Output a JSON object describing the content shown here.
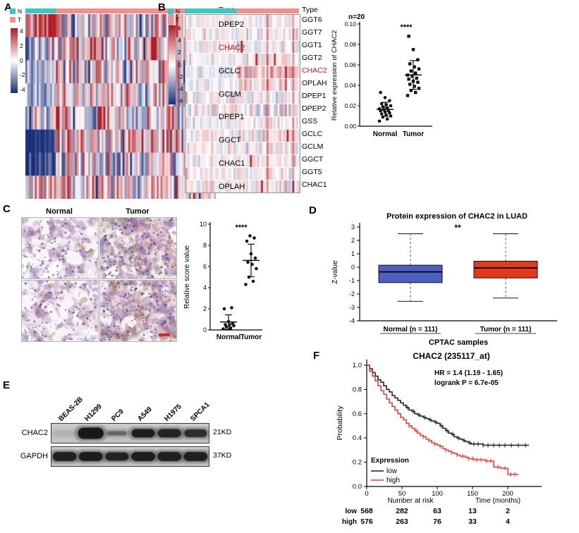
{
  "colors": {
    "type_normal": "#3ec6c3",
    "type_tumor": "#f2908f",
    "heat_pos": "#b01b25",
    "heat_neg": "#1a2f78",
    "highlight_gene": "#c0181c",
    "km_low": "#1a1a1a",
    "km_high": "#e8362e",
    "box_normal": "#4d5fc0",
    "box_tumor": "#e2391b",
    "scalebar": "#d92c1f"
  },
  "panels": {
    "a": {
      "label": "A"
    },
    "b": {
      "label": "B"
    },
    "c": {
      "label": "C"
    },
    "d": {
      "label": "D"
    },
    "e": {
      "label": "E"
    },
    "f": {
      "label": "F"
    }
  },
  "ihc": {
    "col_headers": [
      "Normal",
      "Tumor"
    ],
    "images": [
      {
        "group": "normal",
        "seed": 21
      },
      {
        "group": "tumor",
        "seed": 57
      },
      {
        "group": "normal",
        "seed": 93
      },
      {
        "group": "tumor",
        "seed": 129
      }
    ]
  },
  "blot": {
    "lanes": [
      "BEAS-2B",
      "H1299",
      "PC9",
      "A549",
      "H1975",
      "SPCA1"
    ],
    "rows": [
      {
        "protein": "CHAC2",
        "size": "21KD",
        "heights": [
          7,
          16,
          6,
          12,
          12,
          11
        ],
        "intensities": [
          0.05,
          1.0,
          0.45,
          0.95,
          0.9,
          0.82
        ]
      },
      {
        "protein": "GAPDH",
        "size": "37KD",
        "heights": [
          13,
          13,
          12,
          13,
          13,
          13
        ],
        "intensities": [
          0.92,
          0.96,
          0.9,
          0.95,
          0.93,
          0.93
        ]
      }
    ]
  },
  "chart_data": [
    {
      "id": "heatmap-a",
      "type": "heatmap",
      "type_label": "Type",
      "legend": [
        {
          "key": "N"
        },
        {
          "key": "T"
        }
      ],
      "colorbar_ticks": [
        "4",
        "2",
        "0",
        "-2",
        "-4"
      ],
      "scale_max": 4,
      "columns": 100,
      "normal_fraction": 0.16,
      "seed": 11,
      "column_effect": 0.9,
      "outlier_prob": 0,
      "hot_columns": [],
      "rows": [
        {
          "gene": "DPEP2",
          "highlight": false,
          "n_mean": 3.3,
          "n_sd": 0.7,
          "t_mean": -0.3,
          "t_sd": 1.6
        },
        {
          "gene": "CHAC2",
          "highlight": true,
          "n_mean": -1.0,
          "n_sd": 1.0,
          "t_mean": 0.6,
          "t_sd": 1.7
        },
        {
          "gene": "GCLC",
          "highlight": false,
          "n_mean": -0.6,
          "n_sd": 1.0,
          "t_mean": 0.2,
          "t_sd": 1.7
        },
        {
          "gene": "GCLM",
          "highlight": false,
          "n_mean": -1.0,
          "n_sd": 1.0,
          "t_mean": 0.1,
          "t_sd": 1.6
        },
        {
          "gene": "DPEP1",
          "highlight": false,
          "n_mean": -0.4,
          "n_sd": 1.4,
          "t_mean": 0.0,
          "t_sd": 1.8
        },
        {
          "gene": "GGCT",
          "highlight": false,
          "n_mean": -3.8,
          "n_sd": 0.5,
          "t_mean": 0.6,
          "t_sd": 1.5
        },
        {
          "gene": "CHAC1",
          "highlight": false,
          "n_mean": -3.4,
          "n_sd": 0.8,
          "t_mean": 0.1,
          "t_sd": 1.6
        },
        {
          "gene": "OPLAH",
          "highlight": false,
          "n_mean": 0.9,
          "n_sd": 1.1,
          "t_mean": 0.8,
          "t_sd": 1.4
        }
      ]
    },
    {
      "id": "heatmap-b",
      "type": "heatmap",
      "type_label": "Type",
      "legend": [
        {
          "key": "N"
        },
        {
          "key": "T"
        }
      ],
      "colorbar_ticks": [
        "6",
        "4",
        "2",
        "0",
        "-2",
        "-4",
        "-6"
      ],
      "scale_max": 6,
      "columns": 62,
      "normal_fraction": 0.45,
      "seed": 7,
      "column_effect": 0.3,
      "outlier_prob": 0.015,
      "hot_columns": [
        {
          "index": 44,
          "boost": 3.4
        },
        {
          "index": 58,
          "boost": 2.8
        }
      ],
      "rows": [
        {
          "gene": "GGT6",
          "highlight": false,
          "n_mean": 0.15,
          "n_sd": 0.45,
          "t_mean": -0.1,
          "t_sd": 0.5
        },
        {
          "gene": "GGT7",
          "highlight": false,
          "n_mean": 0.1,
          "n_sd": 0.5,
          "t_mean": 0.0,
          "t_sd": 0.55
        },
        {
          "gene": "GGT1",
          "highlight": false,
          "n_mean": 0.25,
          "n_sd": 0.6,
          "t_mean": -0.15,
          "t_sd": 0.6
        },
        {
          "gene": "GGT2",
          "highlight": false,
          "n_mean": -0.05,
          "n_sd": 0.5,
          "t_mean": 0.1,
          "t_sd": 0.65
        },
        {
          "gene": "CHAC2",
          "highlight": true,
          "n_mean": -0.35,
          "n_sd": 0.4,
          "t_mean": 1.3,
          "t_sd": 1.1
        },
        {
          "gene": "OPLAH",
          "highlight": false,
          "n_mean": -0.05,
          "n_sd": 0.5,
          "t_mean": 0.35,
          "t_sd": 0.8
        },
        {
          "gene": "DPEP1",
          "highlight": false,
          "n_mean": 0.25,
          "n_sd": 0.7,
          "t_mean": -0.3,
          "t_sd": 0.75
        },
        {
          "gene": "DPEP2",
          "highlight": false,
          "n_mean": 0.35,
          "n_sd": 0.8,
          "t_mean": -0.5,
          "t_sd": 0.8
        },
        {
          "gene": "GSS",
          "highlight": false,
          "n_mean": -0.2,
          "n_sd": 0.5,
          "t_mean": 0.2,
          "t_sd": 0.6
        },
        {
          "gene": "GCLC",
          "highlight": false,
          "n_mean": 0.0,
          "n_sd": 0.55,
          "t_mean": 0.15,
          "t_sd": 0.65
        },
        {
          "gene": "GCLM",
          "highlight": false,
          "n_mean": 0.1,
          "n_sd": 0.5,
          "t_mean": 0.0,
          "t_sd": 0.55
        },
        {
          "gene": "GGCT",
          "highlight": false,
          "n_mean": -0.1,
          "n_sd": 0.5,
          "t_mean": 0.15,
          "t_sd": 0.6
        },
        {
          "gene": "GGT5",
          "highlight": false,
          "n_mean": 0.1,
          "n_sd": 0.5,
          "t_mean": -0.1,
          "t_sd": 0.55
        },
        {
          "gene": "CHAC1",
          "highlight": false,
          "n_mean": 0.0,
          "n_sd": 0.5,
          "t_mean": 0.05,
          "t_sd": 0.6
        }
      ]
    },
    {
      "id": "chac2-expression-scatter",
      "type": "scatter",
      "n_label": "n=20",
      "significance": "****",
      "ylabel": "Relative expression of CHAC2",
      "ymin": 0,
      "ymax": 0.1,
      "yticks": [
        "0.00",
        "0.02",
        "0.04",
        "0.06",
        "0.08",
        "0.10"
      ],
      "groups": [
        {
          "label": "Normal",
          "marker": "circle",
          "values": [
            0.005,
            0.007,
            0.009,
            0.01,
            0.011,
            0.012,
            0.013,
            0.014,
            0.015,
            0.015,
            0.016,
            0.017,
            0.018,
            0.019,
            0.02,
            0.021,
            0.022,
            0.025,
            0.028,
            0.033
          ]
        },
        {
          "label": "Tumor",
          "marker": "square",
          "values": [
            0.03,
            0.033,
            0.035,
            0.037,
            0.039,
            0.041,
            0.043,
            0.044,
            0.046,
            0.047,
            0.049,
            0.05,
            0.052,
            0.054,
            0.056,
            0.058,
            0.061,
            0.065,
            0.075,
            0.088
          ]
        }
      ]
    },
    {
      "id": "ihc-score-scatter",
      "type": "scatter",
      "n_label": "",
      "significance": "****",
      "ylabel": "Relative score value",
      "ymin": 0,
      "ymax": 10,
      "yticks": [
        "0",
        "2",
        "4",
        "6",
        "8",
        "10"
      ],
      "groups": [
        {
          "label": "Normal",
          "marker": "circle",
          "values": [
            0.1,
            0.2,
            0.3,
            0.4,
            0.5,
            0.5,
            0.6,
            0.8,
            2.0,
            2.1
          ]
        },
        {
          "label": "Tumor",
          "marker": "circle",
          "values": [
            4.3,
            4.6,
            5.0,
            5.8,
            6.2,
            6.4,
            6.8,
            7.2,
            8.4,
            8.7,
            8.9
          ]
        }
      ]
    },
    {
      "id": "cptac-box",
      "type": "box",
      "title": "Protein expression of CHAC2 in LUAD",
      "significance": "**",
      "ylabel": "Z-value",
      "yticks": [
        3,
        2,
        1,
        0,
        -1,
        -2,
        -3,
        -4
      ],
      "ymin": -4,
      "ymax": 3,
      "xlabel": "CPTAC samples",
      "boxes": [
        {
          "label": "Normal (n = 111)",
          "group": "normal",
          "color": "#4d5fc0",
          "whisker_low": -2.55,
          "q1": -1.15,
          "median": -0.35,
          "q3": 0.15,
          "whisker_high": 2.5
        },
        {
          "label": "Tumor (n = 111)",
          "group": "tumor",
          "color": "#e2391b",
          "whisker_low": -2.3,
          "q1": -0.8,
          "median": -0.05,
          "q3": 0.45,
          "whisker_high": 2.5
        }
      ]
    },
    {
      "id": "km-survival",
      "type": "line",
      "title": "CHAC2 (235117_at)",
      "hr_text": "HR = 1.4 (1.19 - 1.65)",
      "logrank_text": "logrank P = 6.7e-05",
      "ylabel": "Probability",
      "xlabel": "Time (months)",
      "yticks": [
        "1.0",
        "0.8",
        "0.6",
        "0.4",
        "0.2",
        "0.0"
      ],
      "xticks": [
        0,
        50,
        100,
        150,
        200
      ],
      "xmax": 245,
      "legend_title": "Expression",
      "risk_label": "Number at risk",
      "risk_rows": [
        {
          "label": "low",
          "counts": [
            "568",
            "282",
            "63",
            "13",
            "2"
          ]
        },
        {
          "label": "high",
          "counts": [
            "576",
            "263",
            "76",
            "33",
            "4"
          ]
        }
      ],
      "series": [
        {
          "name": "low",
          "points": [
            [
              0,
              1.0
            ],
            [
              4,
              0.97
            ],
            [
              8,
              0.94
            ],
            [
              12,
              0.91
            ],
            [
              16,
              0.88
            ],
            [
              20,
              0.86
            ],
            [
              24,
              0.83
            ],
            [
              28,
              0.8
            ],
            [
              32,
              0.78
            ],
            [
              36,
              0.75
            ],
            [
              40,
              0.73
            ],
            [
              44,
              0.71
            ],
            [
              48,
              0.69
            ],
            [
              52,
              0.67
            ],
            [
              56,
              0.65
            ],
            [
              60,
              0.63
            ],
            [
              64,
              0.62
            ],
            [
              68,
              0.6
            ],
            [
              72,
              0.59
            ],
            [
              76,
              0.58
            ],
            [
              80,
              0.57
            ],
            [
              84,
              0.56
            ],
            [
              88,
              0.55
            ],
            [
              92,
              0.54
            ],
            [
              96,
              0.53
            ],
            [
              100,
              0.52
            ],
            [
              104,
              0.5
            ],
            [
              108,
              0.48
            ],
            [
              112,
              0.46
            ],
            [
              116,
              0.44
            ],
            [
              120,
              0.43
            ],
            [
              124,
              0.41
            ],
            [
              128,
              0.4
            ],
            [
              132,
              0.39
            ],
            [
              136,
              0.38
            ],
            [
              140,
              0.37
            ],
            [
              144,
              0.36
            ],
            [
              148,
              0.35
            ],
            [
              155,
              0.35
            ],
            [
              165,
              0.34
            ],
            [
              180,
              0.34
            ],
            [
              200,
              0.34
            ],
            [
              230,
              0.34
            ]
          ],
          "censors": [
            58,
            66,
            74,
            82,
            90,
            98,
            106,
            114,
            122,
            130,
            138,
            146,
            152,
            158,
            165,
            172,
            180,
            188,
            196,
            205,
            215,
            225
          ]
        },
        {
          "name": "high",
          "points": [
            [
              0,
              1.0
            ],
            [
              4,
              0.95
            ],
            [
              8,
              0.91
            ],
            [
              12,
              0.87
            ],
            [
              16,
              0.83
            ],
            [
              20,
              0.79
            ],
            [
              24,
              0.76
            ],
            [
              28,
              0.72
            ],
            [
              32,
              0.69
            ],
            [
              36,
              0.66
            ],
            [
              40,
              0.63
            ],
            [
              44,
              0.6
            ],
            [
              48,
              0.57
            ],
            [
              52,
              0.55
            ],
            [
              56,
              0.52
            ],
            [
              60,
              0.5
            ],
            [
              64,
              0.48
            ],
            [
              68,
              0.46
            ],
            [
              72,
              0.44
            ],
            [
              76,
              0.42
            ],
            [
              80,
              0.41
            ],
            [
              84,
              0.39
            ],
            [
              88,
              0.38
            ],
            [
              92,
              0.36
            ],
            [
              96,
              0.35
            ],
            [
              100,
              0.34
            ],
            [
              104,
              0.33
            ],
            [
              108,
              0.31
            ],
            [
              112,
              0.3
            ],
            [
              116,
              0.29
            ],
            [
              120,
              0.28
            ],
            [
              124,
              0.27
            ],
            [
              128,
              0.26
            ],
            [
              132,
              0.25
            ],
            [
              136,
              0.25
            ],
            [
              140,
              0.24
            ],
            [
              144,
              0.23
            ],
            [
              148,
              0.23
            ],
            [
              152,
              0.22
            ],
            [
              160,
              0.22
            ],
            [
              168,
              0.21
            ],
            [
              176,
              0.21
            ],
            [
              180,
              0.16
            ],
            [
              190,
              0.15
            ],
            [
              198,
              0.15
            ],
            [
              200,
              0.1
            ],
            [
              215,
              0.1
            ]
          ],
          "censors": [
            60,
            70,
            80,
            88,
            96,
            104,
            112,
            120,
            128,
            136,
            144,
            150,
            156,
            162,
            170,
            176,
            186,
            196,
            204,
            210
          ]
        }
      ]
    }
  ]
}
